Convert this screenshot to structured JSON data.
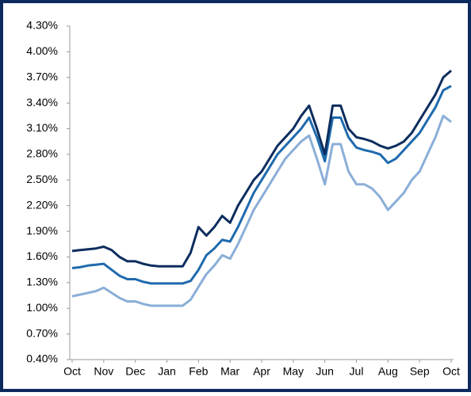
{
  "chart_data": {
    "type": "line",
    "categories": [
      "Oct",
      null,
      null,
      null,
      "Nov",
      null,
      null,
      null,
      "Dec",
      null,
      null,
      null,
      "Jan",
      null,
      null,
      null,
      "Feb",
      null,
      null,
      null,
      "Mar",
      null,
      null,
      null,
      "Apr",
      null,
      null,
      null,
      "May",
      null,
      null,
      null,
      "Jun",
      null,
      null,
      null,
      "Jul",
      null,
      null,
      null,
      "Aug",
      null,
      null,
      null,
      "Sep",
      null,
      null,
      null,
      "Oct"
    ],
    "series": [
      {
        "color": "#0d2d5e",
        "values": [
          1.67,
          1.68,
          1.69,
          1.7,
          1.72,
          1.68,
          1.6,
          1.55,
          1.55,
          1.52,
          1.5,
          1.49,
          1.49,
          1.49,
          1.49,
          1.65,
          1.95,
          1.85,
          1.95,
          2.08,
          2.0,
          2.2,
          2.35,
          2.5,
          2.6,
          2.75,
          2.9,
          3.0,
          3.1,
          3.25,
          3.37,
          3.1,
          2.8,
          3.37,
          3.37,
          3.1,
          3.0,
          2.98,
          2.95,
          2.9,
          2.87,
          2.9,
          2.95,
          3.05,
          3.2,
          3.35,
          3.5,
          3.7,
          3.78
        ]
      },
      {
        "color": "#1f6aad",
        "values": [
          1.47,
          1.48,
          1.5,
          1.51,
          1.52,
          1.45,
          1.38,
          1.34,
          1.34,
          1.31,
          1.29,
          1.29,
          1.29,
          1.29,
          1.29,
          1.32,
          1.45,
          1.62,
          1.7,
          1.8,
          1.78,
          1.95,
          2.15,
          2.35,
          2.5,
          2.65,
          2.8,
          2.9,
          3.0,
          3.1,
          3.23,
          3.0,
          2.72,
          3.23,
          3.23,
          3.0,
          2.88,
          2.85,
          2.83,
          2.8,
          2.7,
          2.75,
          2.85,
          2.95,
          3.05,
          3.2,
          3.35,
          3.55,
          3.6
        ]
      },
      {
        "color": "#8aaed8",
        "values": [
          1.14,
          1.16,
          1.18,
          1.2,
          1.24,
          1.18,
          1.12,
          1.08,
          1.08,
          1.05,
          1.03,
          1.03,
          1.03,
          1.03,
          1.03,
          1.1,
          1.25,
          1.4,
          1.5,
          1.62,
          1.58,
          1.75,
          1.95,
          2.15,
          2.3,
          2.45,
          2.6,
          2.75,
          2.85,
          2.95,
          3.02,
          2.75,
          2.45,
          2.92,
          2.92,
          2.6,
          2.45,
          2.45,
          2.4,
          2.3,
          2.15,
          2.25,
          2.35,
          2.5,
          2.6,
          2.8,
          3.0,
          3.25,
          3.18
        ]
      }
    ],
    "ylim": [
      0.4,
      4.3
    ],
    "yticks": [
      {
        "value": 0.4,
        "label": "0.40%"
      },
      {
        "value": 0.7,
        "label": "0.70%"
      },
      {
        "value": 1.0,
        "label": "1.00%"
      },
      {
        "value": 1.3,
        "label": "1.30%"
      },
      {
        "value": 1.6,
        "label": "1.60%"
      },
      {
        "value": 1.9,
        "label": "1.90%"
      },
      {
        "value": 2.2,
        "label": "2.20%"
      },
      {
        "value": 2.5,
        "label": "2.50%"
      },
      {
        "value": 2.8,
        "label": "2.80%"
      },
      {
        "value": 3.1,
        "label": "3.10%"
      },
      {
        "value": 3.4,
        "label": "3.40%"
      },
      {
        "value": 3.7,
        "label": "3.70%"
      },
      {
        "value": 4.0,
        "label": "4.00%"
      },
      {
        "value": 4.3,
        "label": "4.30%"
      }
    ],
    "grid": false
  }
}
